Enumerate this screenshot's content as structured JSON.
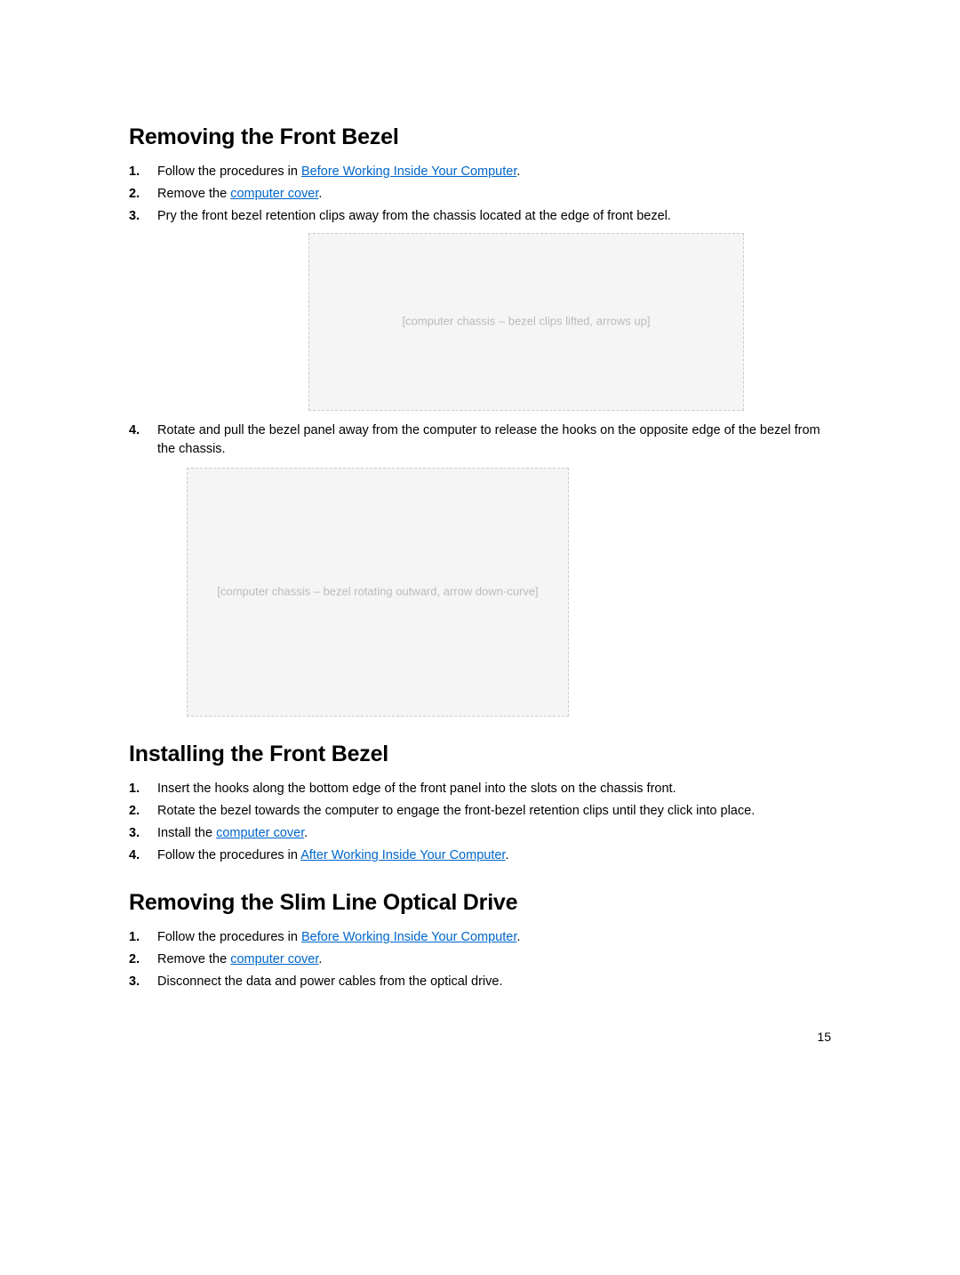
{
  "section1": {
    "heading": "Removing the Front Bezel",
    "steps": {
      "s1a": "Follow the procedures in ",
      "s1link": "Before Working Inside Your Computer",
      "s1b": ".",
      "s2a": "Remove the ",
      "s2link": "computer cover",
      "s2b": ".",
      "s3": "Pry the front bezel retention clips away from the chassis located at the edge of front bezel.",
      "s4": "Rotate and pull the bezel panel away from the computer to release the hooks on the opposite edge of the bezel from the chassis."
    },
    "fig1_label": "[computer chassis – bezel clips lifted, arrows up]",
    "fig2_label": "[computer chassis – bezel rotating outward, arrow down-curve]"
  },
  "section2": {
    "heading": "Installing the Front Bezel",
    "steps": {
      "s1": "Insert the hooks along the bottom edge of the front panel into the slots on the chassis front.",
      "s2": "Rotate the bezel towards the computer to engage the front-bezel retention clips until they click into place.",
      "s3a": "Install the ",
      "s3link": "computer cover",
      "s3b": ".",
      "s4a": "Follow the procedures in ",
      "s4link": "After Working Inside Your Computer",
      "s4b": "."
    }
  },
  "section3": {
    "heading": "Removing the Slim Line Optical Drive",
    "steps": {
      "s1a": "Follow the procedures in ",
      "s1link": "Before Working Inside Your Computer",
      "s1b": ".",
      "s2a": "Remove the ",
      "s2link": "computer cover",
      "s2b": ".",
      "s3": "Disconnect the data and power cables from the optical drive."
    }
  },
  "page_number": "15",
  "colors": {
    "link": "#0066cc",
    "text": "#000000",
    "background": "#ffffff"
  }
}
